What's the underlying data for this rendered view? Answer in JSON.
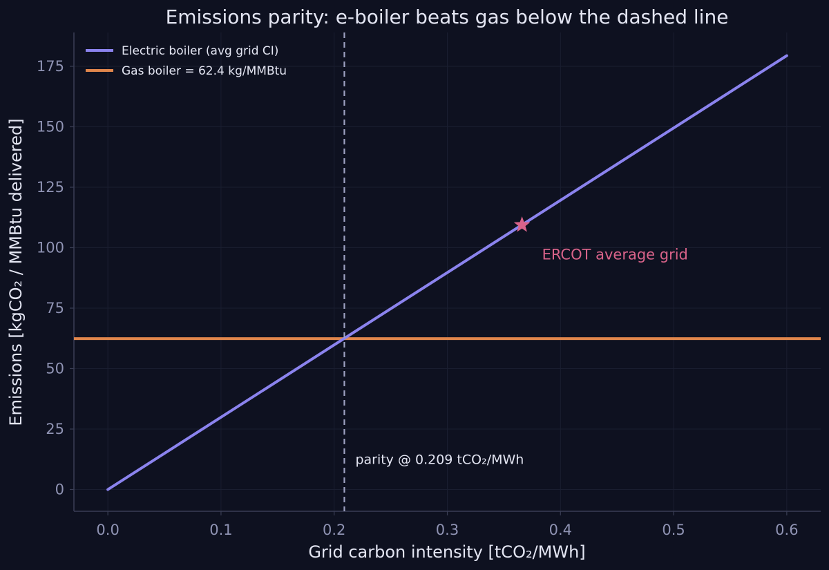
{
  "chart_data": {
    "type": "line",
    "title": "Emissions parity: e-boiler beats gas below the dashed line",
    "xlabel": "Grid carbon intensity  [tCO₂/MWh]",
    "ylabel": "Emissions  [kgCO₂ / MMBtu delivered]",
    "xlim": [
      -0.03,
      0.63
    ],
    "ylim": [
      -9,
      189
    ],
    "x_ticks": [
      0.0,
      0.1,
      0.2,
      0.3,
      0.4,
      0.5,
      0.6
    ],
    "x_tick_labels": [
      "0.0",
      "0.1",
      "0.2",
      "0.3",
      "0.4",
      "0.5",
      "0.6"
    ],
    "y_ticks": [
      0,
      25,
      50,
      75,
      100,
      125,
      150,
      175
    ],
    "y_tick_labels": [
      "0",
      "25",
      "50",
      "75",
      "100",
      "125",
      "150",
      "175"
    ],
    "grid": true,
    "legend_position": "top-left",
    "series": [
      {
        "name": "Electric boiler (avg grid CI)",
        "color": "#8b83ee",
        "points": [
          [
            0.0,
            0.0
          ],
          [
            0.6,
            179.4
          ]
        ]
      },
      {
        "name": "Gas boiler = 62.4 kg/MMBtu",
        "color": "#e0864c",
        "horizontal": 62.4
      }
    ],
    "parity_line": {
      "x": 0.209,
      "color": "#9ea2c2",
      "label": "parity @ 0.209 tCO₂/MWh",
      "label_y": 12
    },
    "marker": {
      "x": 0.366,
      "y": 109.4,
      "color": "#d9638a",
      "label": "ERCOT average grid"
    },
    "colors": {
      "background": "#0e1120",
      "grid": "#1a1e30",
      "spine": "#3a3e55",
      "tick_text": "#8f93b3",
      "text": "#e3e5f2"
    }
  }
}
